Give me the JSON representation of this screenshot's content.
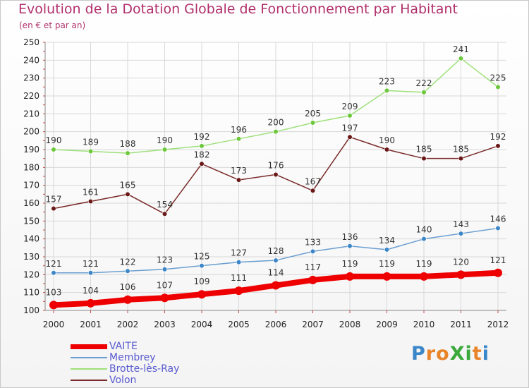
{
  "title": "Evolution de la Dotation Globale de Fonctionnement par Habitant",
  "subtitle": "(en € et par an)",
  "logo": {
    "letters": [
      {
        "ch": "P",
        "color": "#3a86c8"
      },
      {
        "ch": "r",
        "color": "#e8842a"
      },
      {
        "ch": "o",
        "color": "#e8842a"
      },
      {
        "ch": "X",
        "color": "#3aa83a"
      },
      {
        "ch": "i",
        "color": "#3aa83a"
      },
      {
        "ch": "t",
        "color": "#e8842a"
      },
      {
        "ch": "i",
        "color": "#3a86c8"
      }
    ]
  },
  "chart_data": {
    "type": "line",
    "title": "Evolution de la Dotation Globale de Fonctionnement par Habitant",
    "subtitle": "(en € et par an)",
    "xlabel": "",
    "ylabel": "",
    "x": [
      "2000",
      "2001",
      "2002",
      "2003",
      "2004",
      "2005",
      "2006",
      "2007",
      "2008",
      "2009",
      "2010",
      "2011",
      "2012"
    ],
    "ylim": [
      100,
      250
    ],
    "yticks": [
      100,
      110,
      120,
      130,
      140,
      150,
      160,
      170,
      180,
      190,
      200,
      210,
      220,
      230,
      240,
      250
    ],
    "grid": true,
    "legend_position": "bottom-left",
    "series": [
      {
        "name": "VAITE",
        "color": "#ee0000",
        "width": 8,
        "radius": 6,
        "values": [
          103,
          104,
          106,
          107,
          109,
          111,
          114,
          117,
          119,
          119,
          119,
          120,
          121
        ]
      },
      {
        "name": "Membrey",
        "color": "#6a9ed0",
        "point_color": "#3a86c8",
        "width": 1.5,
        "radius": 3.3,
        "values": [
          121,
          121,
          122,
          123,
          125,
          127,
          128,
          133,
          136,
          134,
          140,
          143,
          146
        ]
      },
      {
        "name": "Brotte-lès-Ray",
        "color": "#9ee07a",
        "point_color": "#6cc83a",
        "width": 1.5,
        "radius": 3.3,
        "values": [
          190,
          189,
          188,
          190,
          192,
          196,
          200,
          205,
          209,
          223,
          222,
          241,
          225
        ]
      },
      {
        "name": "Volon",
        "color": "#7a2a2a",
        "point_color": "#6a1818",
        "width": 1.5,
        "radius": 3.3,
        "values": [
          157,
          161,
          165,
          154,
          182,
          173,
          176,
          167,
          197,
          190,
          185,
          185,
          192
        ]
      }
    ]
  }
}
